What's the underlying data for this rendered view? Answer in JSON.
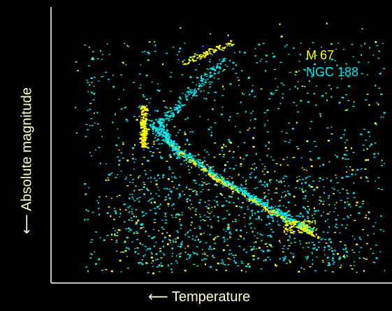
{
  "chart_data": {
    "type": "scatter",
    "title": "",
    "xlabel": "⟵ Temperature",
    "ylabel": "⟵ Absolute magnitude",
    "grid": false,
    "legend_position": "top-right",
    "axis_color": "#ffffff",
    "label_color": "#ffffc8",
    "series": [
      {
        "name": "M 67",
        "color": "#ffff00"
      },
      {
        "name": "NGC 188",
        "color": "#00e5ee"
      }
    ]
  }
}
